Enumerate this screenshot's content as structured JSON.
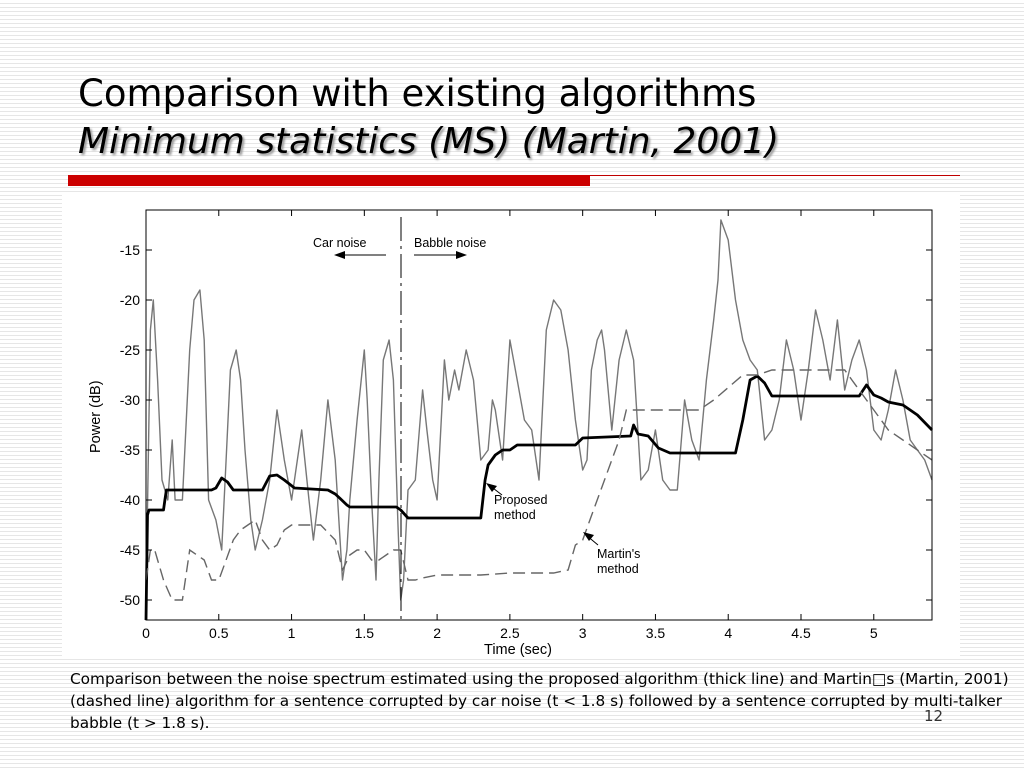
{
  "slide": {
    "title": "Comparison with existing algorithms",
    "subtitle": "Minimum statistics (MS) (Martin, 2001)",
    "caption": "Comparison between the noise spectrum estimated using the proposed algorithm (thick line) and Martin□s (Martin, 2001) (dashed line) algorithm for a sentence corrupted by car noise (t < 1.8 s) followed by a sentence corrupted by multi-talker babble (t > 1.8 s).",
    "page_number": "12",
    "accent_color": "#cc0000",
    "rule_color": "#c00000"
  },
  "chart_data": {
    "type": "line",
    "xlabel": "Time (sec)",
    "ylabel": "Power (dB)",
    "xlim": [
      0,
      5.4
    ],
    "ylim": [
      -52,
      -11
    ],
    "xticks": [
      0,
      0.5,
      1,
      1.5,
      2,
      2.5,
      3,
      3.5,
      4,
      4.5,
      5
    ],
    "yticks": [
      -50,
      -45,
      -40,
      -35,
      -30,
      -25,
      -20,
      -15
    ],
    "grid": false,
    "annotations": {
      "car_noise": "Car noise",
      "babble_noise": "Babble noise",
      "proposed": [
        "Proposed",
        "method"
      ],
      "martin": [
        "Martin's",
        "method"
      ],
      "boundary_time": 1.8
    },
    "series": [
      {
        "style": "thin",
        "x": [
          0,
          0.03,
          0.05,
          0.08,
          0.11,
          0.15,
          0.18,
          0.2,
          0.25,
          0.3,
          0.33,
          0.37,
          0.4,
          0.43,
          0.48,
          0.52,
          0.55,
          0.58,
          0.62,
          0.65,
          0.68,
          0.72,
          0.75,
          0.8,
          0.85,
          0.9,
          0.95,
          1.0,
          1.03,
          1.07,
          1.12,
          1.15,
          1.2,
          1.25,
          1.3,
          1.35,
          1.38,
          1.4,
          1.45,
          1.5,
          1.52,
          1.55,
          1.58,
          1.6,
          1.63,
          1.67,
          1.7,
          1.73,
          1.75,
          1.77,
          1.8,
          1.85,
          1.9,
          1.93,
          1.97,
          2.0,
          2.05,
          2.08,
          2.12,
          2.15,
          2.2,
          2.25,
          2.3,
          2.35,
          2.38,
          2.4,
          2.45,
          2.5,
          2.55,
          2.6,
          2.65,
          2.7,
          2.75,
          2.8,
          2.85,
          2.9,
          2.95,
          3.0,
          3.03,
          3.06,
          3.1,
          3.13,
          3.15,
          3.2,
          3.25,
          3.3,
          3.35,
          3.4,
          3.45,
          3.5,
          3.55,
          3.6,
          3.65,
          3.7,
          3.75,
          3.8,
          3.85,
          3.9,
          3.93,
          3.95,
          4.0,
          4.05,
          4.1,
          4.15,
          4.2,
          4.25,
          4.3,
          4.35,
          4.4,
          4.45,
          4.5,
          4.55,
          4.6,
          4.65,
          4.7,
          4.75,
          4.8,
          4.85,
          4.9,
          4.95,
          5.0,
          5.05,
          5.1,
          5.15,
          5.2,
          5.25,
          5.3,
          5.35,
          5.4
        ],
        "y": [
          -50,
          -23,
          -20,
          -28,
          -38,
          -40,
          -34,
          -40,
          -40,
          -25,
          -20,
          -19,
          -24,
          -40,
          -42,
          -45,
          -36,
          -27,
          -25,
          -28,
          -35,
          -42,
          -45,
          -42,
          -38,
          -31,
          -36,
          -40,
          -37,
          -33,
          -40,
          -44,
          -38,
          -30,
          -36,
          -48,
          -45,
          -40,
          -32,
          -25,
          -30,
          -40,
          -48,
          -38,
          -26,
          -24,
          -28,
          -42,
          -50,
          -48,
          -39,
          -38,
          -29,
          -33,
          -38,
          -40,
          -26,
          -30,
          -27,
          -29,
          -25,
          -28,
          -36,
          -35,
          -30,
          -31,
          -36,
          -24,
          -28,
          -32,
          -33,
          -38,
          -23,
          -20,
          -21,
          -25,
          -32,
          -37,
          -36,
          -27,
          -24,
          -23,
          -25,
          -33,
          -26,
          -23,
          -26,
          -38,
          -37,
          -33,
          -38,
          -39,
          -39,
          -30,
          -34,
          -36,
          -28,
          -22,
          -18,
          -12,
          -14,
          -20,
          -24,
          -26,
          -27,
          -34,
          -33,
          -30,
          -24,
          -27,
          -32,
          -27,
          -21,
          -24,
          -28,
          -22,
          -29,
          -26,
          -24,
          -27,
          -33,
          -34,
          -31,
          -27,
          -30,
          -34,
          -35,
          -36,
          -38
        ]
      },
      {
        "style": "thick",
        "x": [
          0,
          0.01,
          0.02,
          0.12,
          0.13,
          0.14,
          0.15,
          0.45,
          0.48,
          0.52,
          0.56,
          0.6,
          0.8,
          0.85,
          0.9,
          0.95,
          1.02,
          1.25,
          1.3,
          1.33,
          1.38,
          1.4,
          1.5,
          1.62,
          1.72,
          1.75,
          1.8,
          2.3,
          2.33,
          2.35,
          2.4,
          2.45,
          2.5,
          2.55,
          2.6,
          2.95,
          3.0,
          3.33,
          3.35,
          3.38,
          3.45,
          3.52,
          3.6,
          3.85,
          4.05,
          4.1,
          4.15,
          4.2,
          4.25,
          4.3,
          4.4,
          4.9,
          4.95,
          5.0,
          5.05,
          5.1,
          5.2,
          5.3,
          5.4
        ],
        "y": [
          -52,
          -41.5,
          -41,
          -41,
          -40,
          -39,
          -39,
          -39,
          -38.8,
          -37.8,
          -38.2,
          -39,
          -39,
          -37.6,
          -37.5,
          -38,
          -38.8,
          -39,
          -39.4,
          -39.8,
          -40.5,
          -40.7,
          -40.7,
          -40.7,
          -40.7,
          -41,
          -41.8,
          -41.8,
          -38,
          -36.5,
          -35.5,
          -35,
          -35,
          -34.5,
          -34.5,
          -34.5,
          -33.8,
          -33.6,
          -32.5,
          -33.4,
          -33.6,
          -34.8,
          -35.3,
          -35.3,
          -35.3,
          -32,
          -28,
          -27.6,
          -28.3,
          -29.6,
          -29.6,
          -29.6,
          -28.5,
          -29.5,
          -29.8,
          -30.2,
          -30.5,
          -31.5,
          -33
        ]
      },
      {
        "style": "dashed",
        "x": [
          0,
          0.03,
          0.06,
          0.08,
          0.12,
          0.15,
          0.18,
          0.2,
          0.25,
          0.3,
          0.35,
          0.4,
          0.45,
          0.5,
          0.55,
          0.6,
          0.65,
          0.7,
          0.75,
          0.8,
          0.85,
          0.9,
          0.95,
          1.0,
          1.05,
          1.2,
          1.3,
          1.35,
          1.4,
          1.45,
          1.5,
          1.55,
          1.6,
          1.65,
          1.7,
          1.75,
          1.8,
          1.85,
          1.9,
          2.0,
          2.1,
          2.3,
          2.5,
          2.6,
          2.8,
          2.9,
          2.95,
          3.0,
          3.05,
          3.1,
          3.15,
          3.2,
          3.25,
          3.3,
          3.35,
          3.4,
          3.5,
          3.8,
          3.9,
          4.1,
          4.15,
          4.2,
          4.3,
          4.5,
          4.7,
          4.8,
          4.85,
          4.9,
          4.95,
          5.0,
          5.05,
          5.1,
          5.2,
          5.3,
          5.4
        ],
        "y": [
          -48,
          -45,
          -45,
          -46,
          -48,
          -49,
          -50,
          -50,
          -50,
          -45,
          -45.5,
          -46,
          -48,
          -48,
          -46,
          -44,
          -43,
          -42.5,
          -42,
          -44,
          -45,
          -44.5,
          -43,
          -42.5,
          -42.5,
          -42.5,
          -44,
          -47,
          -45.5,
          -45,
          -45,
          -46,
          -46,
          -45.5,
          -45,
          -45,
          -48,
          -48,
          -47.8,
          -47.5,
          -47.5,
          -47.5,
          -47.3,
          -47.3,
          -47.3,
          -47,
          -44.5,
          -44,
          -42,
          -40,
          -38,
          -36,
          -34,
          -31,
          -31,
          -31,
          -31,
          -31,
          -30,
          -27.5,
          -27.5,
          -27.5,
          -27,
          -27,
          -27,
          -27,
          -28,
          -29,
          -30,
          -31,
          -32,
          -33,
          -34,
          -35,
          -36
        ]
      }
    ]
  }
}
